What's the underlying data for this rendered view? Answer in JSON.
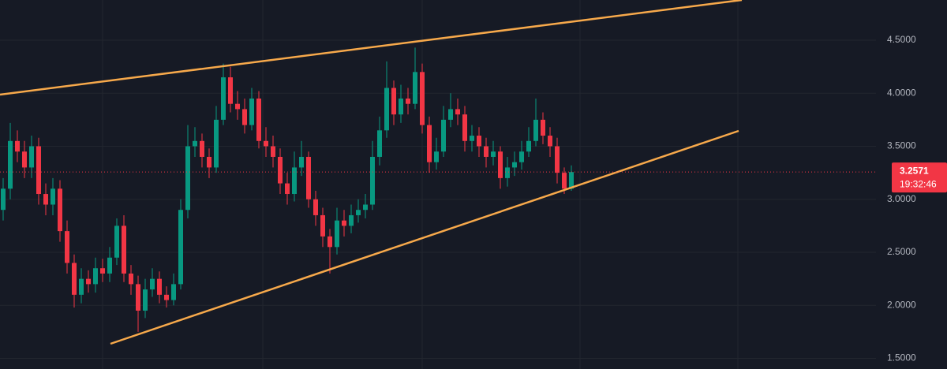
{
  "chart_data": {
    "type": "candlestick",
    "up_color": "#089981",
    "down_color": "#f23645",
    "grid": true,
    "ylim": [
      1.4,
      4.879
    ],
    "yticks": [
      {
        "value": 1.5,
        "label": "1.5000"
      },
      {
        "value": 2,
        "label": "2.0000"
      },
      {
        "value": 2.5,
        "label": "2.5000"
      },
      {
        "value": 3,
        "label": "3.0000"
      },
      {
        "value": 3.5,
        "label": "3.5000"
      },
      {
        "value": 4,
        "label": "4.0000"
      },
      {
        "value": 4.5,
        "label": "4.5000"
      }
    ],
    "open": [
      2.9,
      3.1,
      3.55,
      3.45,
      3.3,
      3.5,
      3.05,
      2.95,
      3.1,
      2.7,
      2.4,
      2.1,
      2.25,
      2.2,
      2.35,
      2.3,
      2.45,
      2.75,
      2.3,
      2.2,
      1.95,
      2.15,
      2.25,
      2.1,
      2.05,
      2.2,
      2.9,
      3.5,
      3.55,
      3.4,
      3.3,
      3.75,
      4.15,
      3.9,
      3.85,
      3.7,
      3.95,
      3.55,
      3.5,
      3.4,
      3.15,
      3.05,
      3.3,
      3.4,
      3.0,
      2.85,
      2.65,
      2.55,
      2.8,
      2.75,
      2.85,
      2.9,
      2.95,
      3.4,
      3.65,
      4.05,
      3.8,
      3.95,
      3.9,
      4.2,
      3.7,
      3.35,
      3.45,
      3.75,
      3.85,
      3.8,
      3.55,
      3.6,
      3.5,
      3.4,
      3.45,
      3.2,
      3.3,
      3.35,
      3.45,
      3.55,
      3.75,
      3.6,
      3.5,
      3.25,
      3.1
    ],
    "high": [
      3.2,
      3.72,
      3.65,
      3.55,
      3.6,
      3.58,
      3.15,
      3.2,
      3.18,
      2.8,
      2.48,
      2.35,
      2.33,
      2.45,
      2.44,
      2.55,
      2.82,
      2.85,
      2.38,
      2.28,
      2.25,
      2.35,
      2.32,
      2.18,
      2.3,
      3.0,
      3.7,
      3.68,
      3.62,
      3.48,
      3.88,
      4.28,
      4.25,
      4.02,
      3.95,
      4.05,
      4.02,
      3.68,
      3.6,
      3.48,
      3.25,
      3.45,
      3.55,
      3.45,
      3.08,
      2.92,
      2.72,
      2.92,
      2.9,
      2.95,
      3.0,
      3.05,
      3.55,
      3.78,
      4.3,
      4.12,
      4.08,
      4.05,
      4.43,
      4.28,
      3.78,
      3.58,
      3.88,
      4.0,
      3.95,
      3.88,
      3.7,
      3.68,
      3.58,
      3.55,
      3.5,
      3.4,
      3.45,
      3.55,
      3.68,
      3.95,
      3.82,
      3.68,
      3.58,
      3.3,
      3.32
    ],
    "low": [
      2.8,
      3.0,
      3.35,
      3.2,
      3.2,
      2.95,
      2.85,
      2.85,
      2.6,
      2.3,
      1.98,
      2.02,
      2.12,
      2.12,
      2.22,
      2.22,
      2.38,
      2.22,
      2.1,
      1.75,
      1.88,
      2.08,
      2.02,
      1.98,
      2.0,
      2.15,
      2.82,
      3.4,
      3.3,
      3.2,
      3.25,
      3.7,
      3.82,
      3.75,
      3.62,
      3.65,
      3.48,
      3.4,
      3.3,
      3.05,
      2.95,
      2.98,
      3.22,
      2.92,
      2.75,
      2.55,
      2.3,
      2.48,
      2.65,
      2.68,
      2.78,
      2.82,
      2.9,
      3.32,
      3.58,
      3.7,
      3.72,
      3.8,
      3.85,
      3.62,
      3.25,
      3.28,
      3.4,
      3.68,
      3.7,
      3.45,
      3.45,
      3.4,
      3.3,
      3.32,
      3.1,
      3.12,
      3.22,
      3.28,
      3.4,
      3.5,
      3.52,
      3.4,
      3.15,
      3.05,
      3.08
    ],
    "close": [
      3.1,
      3.55,
      3.45,
      3.3,
      3.5,
      3.05,
      2.95,
      3.1,
      2.7,
      2.4,
      2.1,
      2.25,
      2.2,
      2.35,
      2.3,
      2.45,
      2.75,
      2.3,
      2.2,
      1.95,
      2.15,
      2.25,
      2.1,
      2.05,
      2.2,
      2.9,
      3.5,
      3.55,
      3.4,
      3.3,
      3.75,
      4.15,
      3.9,
      3.85,
      3.7,
      3.95,
      3.55,
      3.5,
      3.4,
      3.15,
      3.05,
      3.3,
      3.4,
      3.0,
      2.85,
      2.65,
      2.55,
      2.8,
      2.75,
      2.85,
      2.9,
      2.95,
      3.4,
      3.65,
      4.05,
      3.8,
      3.95,
      3.9,
      4.2,
      3.7,
      3.35,
      3.45,
      3.75,
      3.85,
      3.8,
      3.55,
      3.6,
      3.5,
      3.4,
      3.45,
      3.2,
      3.3,
      3.35,
      3.45,
      3.55,
      3.75,
      3.6,
      3.5,
      3.25,
      3.1,
      3.2571
    ],
    "last_price": 3.2571,
    "countdown": "19:32:46"
  }
}
